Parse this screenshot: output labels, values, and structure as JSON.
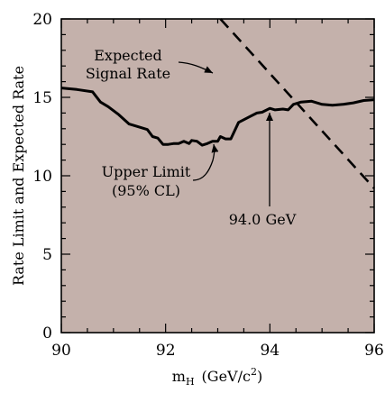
{
  "chart_data": {
    "type": "line",
    "ylabel": "Rate Limit and Expected Rate",
    "xlabel_main": "m",
    "xlabel_sub": "H",
    "xlabel_units_pre": "(GeV/c",
    "xlabel_units_sup": "2",
    "xlabel_units_post": ")",
    "xlim": [
      90,
      96
    ],
    "ylim": [
      0,
      20
    ],
    "x_ticks": [
      "90",
      "92",
      "94",
      "96"
    ],
    "y_ticks": [
      "0",
      "5",
      "10",
      "15",
      "20"
    ],
    "background_color": "#c4b1ab",
    "series": [
      {
        "style": "solid",
        "x": [
          90.0,
          90.3,
          90.6,
          90.75,
          90.9,
          91.1,
          91.3,
          91.5,
          91.65,
          91.75,
          91.85,
          91.95,
          92.05,
          92.15,
          92.25,
          92.35,
          92.45,
          92.5,
          92.6,
          92.7,
          92.8,
          92.9,
          93.0,
          93.05,
          93.15,
          93.25,
          93.4,
          93.6,
          93.75,
          93.85,
          94.0,
          94.1,
          94.25,
          94.35,
          94.45,
          94.6,
          94.8,
          95.0,
          95.2,
          95.4,
          95.6,
          95.8,
          96.0
        ],
        "y": [
          15.6,
          15.5,
          15.35,
          14.7,
          14.4,
          13.9,
          13.3,
          13.1,
          12.95,
          12.5,
          12.4,
          12.0,
          12.0,
          12.05,
          12.05,
          12.2,
          12.05,
          12.25,
          12.2,
          11.95,
          12.05,
          12.2,
          12.2,
          12.5,
          12.35,
          12.35,
          13.4,
          13.75,
          14.0,
          14.05,
          14.3,
          14.2,
          14.25,
          14.2,
          14.55,
          14.7,
          14.75,
          14.55,
          14.5,
          14.55,
          14.65,
          14.8,
          14.85
        ]
      },
      {
        "style": "dashed",
        "x": [
          93.05,
          96.0
        ],
        "y": [
          20.0,
          9.2
        ]
      }
    ],
    "annotations": [
      {
        "lines": [
          "Expected",
          "Signal Rate"
        ]
      },
      {
        "lines": [
          "Upper Limit",
          "(95% CL)"
        ]
      },
      {
        "lines": [
          "94.0 GeV"
        ]
      }
    ]
  }
}
